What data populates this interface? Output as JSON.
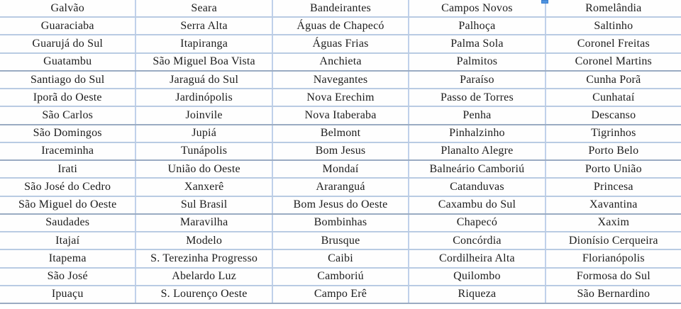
{
  "colors": {
    "grid_line": "#b9cbe3",
    "grid_line_strong": "#9aabc2",
    "column_handle": "#4f94e0",
    "text": "#1c1c1c",
    "background": "#ffffff"
  },
  "table": {
    "columns_count": 5,
    "rows": [
      [
        "Galvão",
        "Seara",
        "Bandeirantes",
        "Campos Novos",
        "Romelândia"
      ],
      [
        "Guaraciaba",
        "Serra Alta",
        "Águas de Chapecó",
        "Palhoça",
        "Saltinho"
      ],
      [
        "Guarujá do Sul",
        "Itapiranga",
        "Águas Frias",
        "Palma Sola",
        "Coronel Freitas"
      ],
      [
        "Guatambu",
        "São Miguel Boa Vista",
        "Anchieta",
        "Palmitos",
        "Coronel Martins"
      ],
      [
        "Santiago do Sul",
        "Jaraguá do Sul",
        "Navegantes",
        "Paraíso",
        "Cunha Porã"
      ],
      [
        "Iporã do Oeste",
        "Jardinópolis",
        "Nova Erechim",
        "Passo de Torres",
        "Cunhataí"
      ],
      [
        "São Carlos",
        "Joinvile",
        "Nova Itaberaba",
        "Penha",
        "Descanso"
      ],
      [
        "São Domingos",
        "Jupiá",
        "Belmont",
        "Pinhalzinho",
        "Tigrinhos"
      ],
      [
        "Iraceminha",
        "Tunápolis",
        "Bom Jesus",
        "Planalto Alegre",
        "Porto Belo"
      ],
      [
        "Irati",
        "União do Oeste",
        "Mondaí",
        "Balneário Camboriú",
        "Porto União"
      ],
      [
        "São José do Cedro",
        "Xanxerê",
        "Araranguá",
        "Catanduvas",
        "Princesa"
      ],
      [
        "São Miguel do Oeste",
        "Sul Brasil",
        "Bom Jesus do Oeste",
        "Caxambu do Sul",
        "Xavantina"
      ],
      [
        "Saudades",
        "Maravilha",
        "Bombinhas",
        "Chapecó",
        "Xaxim"
      ],
      [
        "Itajaí",
        "Modelo",
        "Brusque",
        "Concórdia",
        "Dionísio Cerqueira"
      ],
      [
        "Itapema",
        "S. Terezinha Progresso",
        "Caibi",
        "Cordilheira Alta",
        "Florianópolis"
      ],
      [
        "São José",
        "Abelardo Luz",
        "Camboriú",
        "Quilombo",
        "Formosa do Sul"
      ],
      [
        "Ipuaçu",
        "S. Lourenço Oeste",
        "Campo Erê",
        "Riqueza",
        "São Bernardino"
      ]
    ]
  }
}
